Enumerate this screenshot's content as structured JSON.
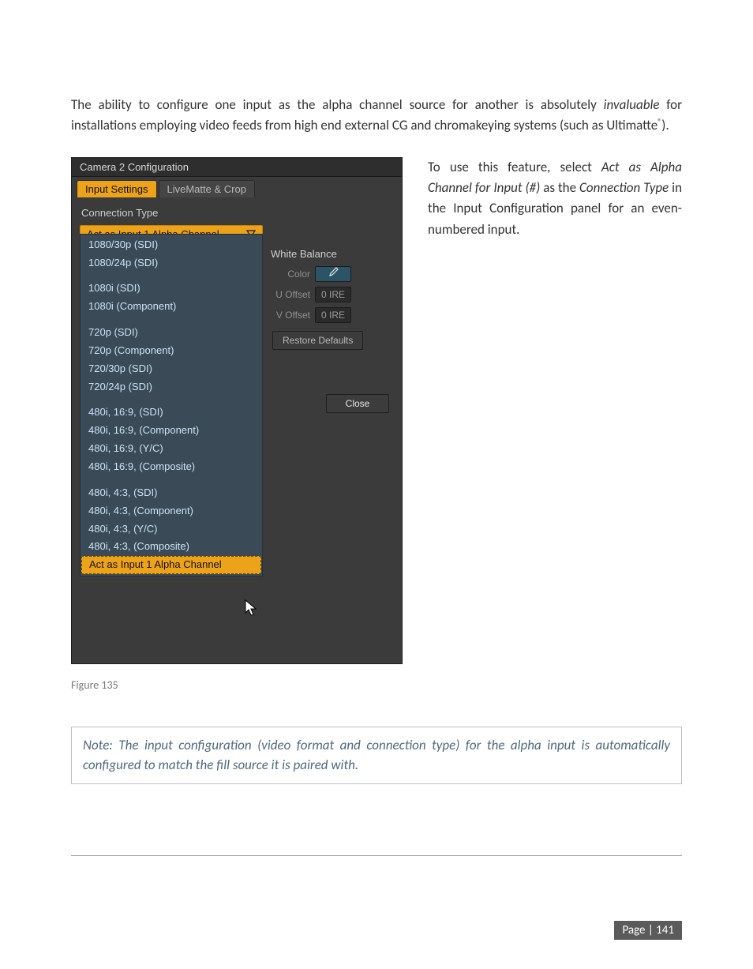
{
  "body": {
    "intro_a": "The ability to configure one input as the alpha channel source for another is absolutely ",
    "intro_italic": "invaluable",
    "intro_b": " for installations employing video feeds from high end external CG and chromakeying systems (such as Ultimatte",
    "intro_reg": "®",
    "intro_c": ")."
  },
  "right_text": {
    "a": "To use this feature, select ",
    "b_italic": "Act as Alpha Channel for Input (#)",
    "c": " as the ",
    "d_italic": "Connection Type",
    "e": " in the Input Configuration panel for an even-numbered input."
  },
  "dialog": {
    "title": "Camera 2 Configuration",
    "tab_active": "Input Settings",
    "tab_inactive": "LiveMatte & Crop",
    "section_label": "Connection Type",
    "dropdown_value": "Act as Input 1 Alpha Channel",
    "dd_items": [
      {
        "label": "1080/30p (SDI)"
      },
      {
        "label": "1080/24p (SDI)"
      },
      {
        "label": "1080i (SDI)",
        "gap": true
      },
      {
        "label": "1080i (Component)"
      },
      {
        "label": "720p (SDI)",
        "gap": true
      },
      {
        "label": "720p (Component)"
      },
      {
        "label": "720/30p (SDI)"
      },
      {
        "label": "720/24p (SDI)"
      },
      {
        "label": "480i, 16:9, (SDI)",
        "gap": true
      },
      {
        "label": "480i, 16:9, (Component)"
      },
      {
        "label": "480i, 16:9, (Y/C)"
      },
      {
        "label": "480i, 16:9, (Composite)"
      },
      {
        "label": "480i, 4:3, (SDI)",
        "gap": true
      },
      {
        "label": "480i, 4:3, (Component)"
      },
      {
        "label": "480i, 4:3, (Y/C)"
      },
      {
        "label": "480i, 4:3, (Composite)"
      },
      {
        "label": "Act as Input 1 Alpha Channel",
        "gap": true,
        "selected": true
      }
    ],
    "wb_label": "White Balance",
    "color_label": "Color",
    "u_label": "U Offset",
    "u_value": "0 IRE",
    "v_label": "V Offset",
    "v_value": "0 IRE",
    "restore_label": "Restore Defaults",
    "close_label": "Close",
    "colors": {
      "orange": "#eca219",
      "panel_bg": "#3b3b3b",
      "list_bg": "#3a4a57",
      "list_text": "#cde3f3"
    }
  },
  "caption": "Figure 135",
  "note": "Note: The input configuration (video format and connection type) for the alpha input is automatically configured to match the fill source it is paired with.",
  "footer": "Page | 141"
}
